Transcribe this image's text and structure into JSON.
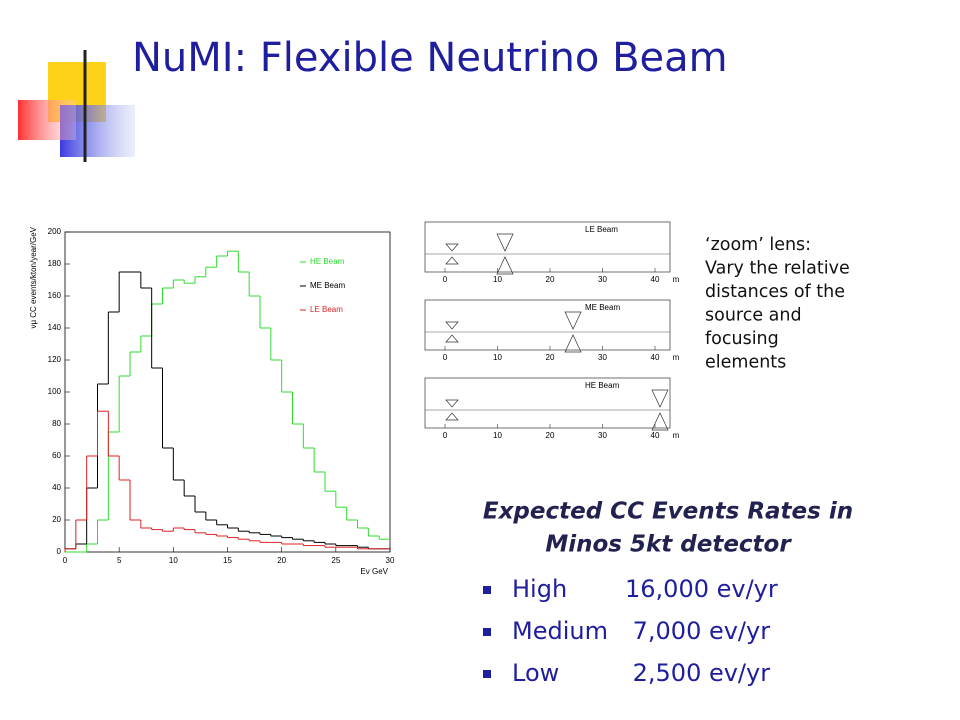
{
  "title": "NuMI: Flexible Neutrino Beam",
  "chart_data": {
    "type": "histogram",
    "xlabel": "Eν GeV",
    "ylabel": "νμ CC events/kton/year/GeV",
    "bins": [
      0,
      1,
      2,
      3,
      4,
      5,
      6,
      7,
      8,
      9,
      10,
      11,
      12,
      13,
      14,
      15,
      16,
      17,
      18,
      19,
      20,
      21,
      22,
      23,
      24,
      25,
      26,
      27,
      28,
      29,
      30
    ],
    "series": [
      {
        "name": "HE Beam",
        "color": "#2edc2e",
        "values": [
          0,
          0,
          5,
          20,
          75,
          110,
          125,
          135,
          155,
          165,
          170,
          168,
          172,
          178,
          185,
          188,
          175,
          160,
          140,
          120,
          100,
          80,
          65,
          50,
          38,
          28,
          20,
          15,
          10,
          8
        ]
      },
      {
        "name": "ME Beam",
        "color": "#000000",
        "values": [
          2,
          5,
          40,
          105,
          150,
          175,
          175,
          165,
          115,
          65,
          45,
          35,
          25,
          20,
          17,
          15,
          13,
          12,
          11,
          10,
          9,
          8,
          7,
          6,
          5,
          4,
          4,
          3,
          2,
          2
        ]
      },
      {
        "name": "LE Beam",
        "color": "#dd2222",
        "values": [
          2,
          20,
          60,
          88,
          60,
          45,
          20,
          15,
          14,
          13,
          15,
          14,
          12,
          11,
          10,
          9,
          8,
          7,
          6,
          6,
          5,
          5,
          4,
          4,
          3,
          3,
          3,
          2,
          2,
          2
        ]
      }
    ],
    "xlim": [
      0,
      30
    ],
    "xticks": [
      0,
      5,
      10,
      15,
      20,
      25,
      30
    ],
    "ylim": [
      0,
      200
    ],
    "yticks": [
      0,
      20,
      40,
      60,
      80,
      100,
      120,
      140,
      160,
      180,
      200
    ]
  },
  "beam_diagrams": [
    {
      "label": "LE Beam"
    },
    {
      "label": "ME Beam"
    },
    {
      "label": "HE Beam"
    }
  ],
  "diagram_axis": {
    "ticks": [
      0,
      10,
      20,
      30,
      40
    ],
    "unit": "m"
  },
  "note": [
    "‘zoom’  lens:",
    "Vary the relative",
    "distances of the",
    "source and",
    "focusing",
    "elements"
  ],
  "rates": {
    "heading": [
      "Expected CC Events Rates in",
      "Minos 5kt detector"
    ],
    "items": [
      {
        "name": "High",
        "value": "16,000 ev/yr"
      },
      {
        "name": "Medium",
        "value": " 7,000 ev/yr"
      },
      {
        "name": "Low",
        "value": " 2,500 ev/yr"
      }
    ]
  }
}
